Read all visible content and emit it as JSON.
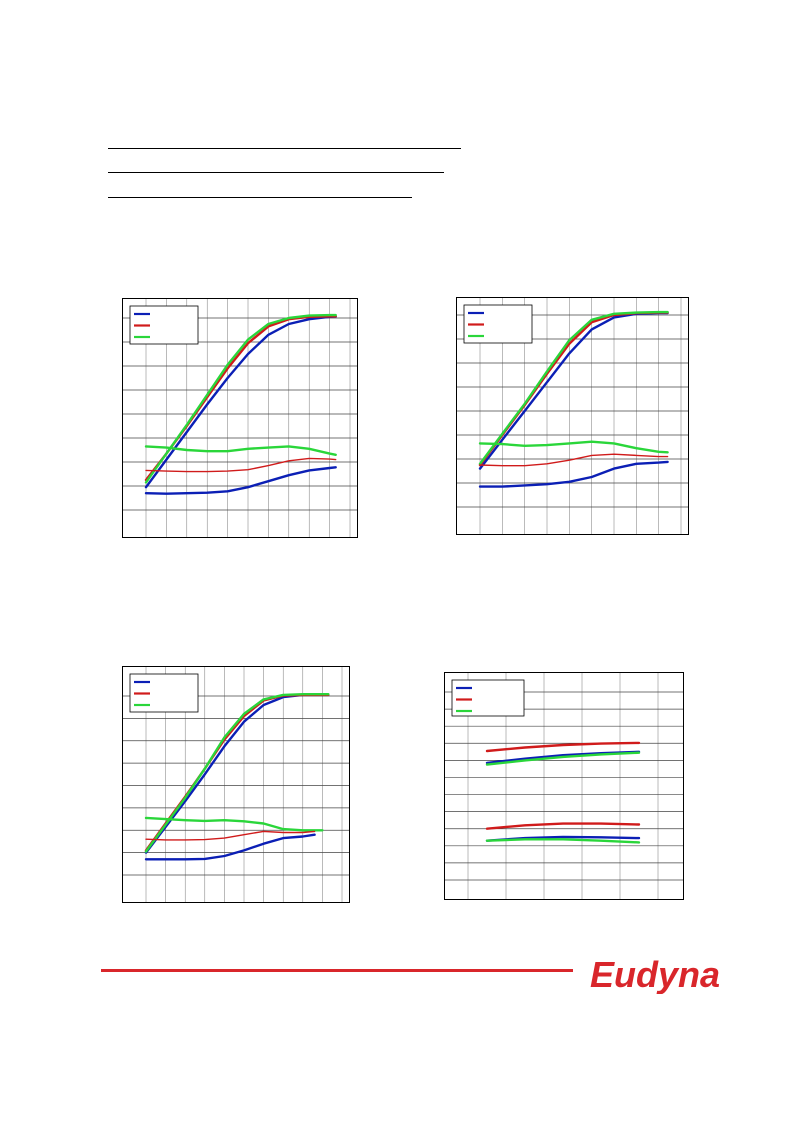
{
  "page": {
    "header_rules": 3
  },
  "footer": {
    "logo_text": "Eudyna",
    "accent_color": "#d9262b"
  },
  "chart_data": [
    {
      "type": "line",
      "title": "",
      "grid": true,
      "legend": "top-left",
      "xlim": [
        0,
        10
      ],
      "ylim": [
        0,
        8
      ],
      "xticks": 10,
      "yticks": 8,
      "series": [
        {
          "color": "#0b1fb5",
          "width": 2.4,
          "x": [
            0,
            1,
            2,
            3,
            4,
            5,
            6,
            7,
            8,
            9,
            9.3
          ],
          "y": [
            0.95,
            2.1,
            3.25,
            4.4,
            5.5,
            6.5,
            7.3,
            7.75,
            7.95,
            8.05,
            8.06
          ]
        },
        {
          "color": "#d01b1b",
          "width": 2.4,
          "x": [
            0,
            1,
            2,
            3,
            4,
            5,
            6,
            7,
            8,
            9,
            9.3
          ],
          "y": [
            1.25,
            2.35,
            3.5,
            4.7,
            5.9,
            6.95,
            7.65,
            7.95,
            8.05,
            8.07,
            8.07
          ]
        },
        {
          "color": "#2ad63a",
          "width": 2.4,
          "x": [
            0,
            1,
            2,
            3,
            4,
            5,
            6,
            7,
            8,
            9,
            9.3
          ],
          "y": [
            1.15,
            2.35,
            3.55,
            4.8,
            6.05,
            7.1,
            7.75,
            8.0,
            8.1,
            8.12,
            8.12
          ]
        },
        {
          "color": "#2ad63a",
          "width": 2.4,
          "x": [
            0,
            1,
            2,
            3,
            4,
            5,
            6,
            7,
            8,
            9,
            9.3
          ],
          "y": [
            2.65,
            2.6,
            2.5,
            2.45,
            2.45,
            2.55,
            2.6,
            2.65,
            2.55,
            2.35,
            2.3
          ]
        },
        {
          "color": "#d01b1b",
          "width": 1.4,
          "x": [
            0,
            1,
            2,
            3,
            4,
            5,
            6,
            7,
            8,
            9,
            9.3
          ],
          "y": [
            1.65,
            1.62,
            1.6,
            1.6,
            1.62,
            1.68,
            1.85,
            2.05,
            2.15,
            2.12,
            2.1
          ]
        },
        {
          "color": "#0b1fb5",
          "width": 2.4,
          "x": [
            0,
            1,
            2,
            3,
            4,
            5,
            6,
            7,
            8,
            9,
            9.3
          ],
          "y": [
            0.7,
            0.68,
            0.7,
            0.72,
            0.78,
            0.95,
            1.2,
            1.45,
            1.65,
            1.75,
            1.78
          ]
        }
      ]
    },
    {
      "type": "line",
      "title": "",
      "grid": true,
      "legend": "top-left",
      "xlim": [
        0,
        9
      ],
      "ylim": [
        0,
        8
      ],
      "xticks": 9,
      "yticks": 8,
      "series": [
        {
          "color": "#0b1fb5",
          "width": 2.4,
          "x": [
            0,
            1,
            2,
            3,
            4,
            5,
            6,
            7,
            8,
            8.4
          ],
          "y": [
            1.6,
            2.8,
            4.0,
            5.2,
            6.4,
            7.4,
            7.9,
            8.05,
            8.08,
            8.08
          ]
        },
        {
          "color": "#d01b1b",
          "width": 2.4,
          "x": [
            0,
            1,
            2,
            3,
            4,
            5,
            6,
            7,
            8,
            8.4
          ],
          "y": [
            1.75,
            3.0,
            4.25,
            5.55,
            6.8,
            7.7,
            8.0,
            8.08,
            8.1,
            8.1
          ]
        },
        {
          "color": "#2ad63a",
          "width": 2.4,
          "x": [
            0,
            1,
            2,
            3,
            4,
            5,
            6,
            7,
            8,
            8.4
          ],
          "y": [
            1.8,
            3.05,
            4.3,
            5.65,
            6.95,
            7.8,
            8.05,
            8.1,
            8.12,
            8.12
          ]
        },
        {
          "color": "#2ad63a",
          "width": 2.4,
          "x": [
            0,
            1,
            2,
            3,
            4,
            5,
            6,
            7,
            8,
            8.4
          ],
          "y": [
            2.65,
            2.62,
            2.55,
            2.58,
            2.65,
            2.72,
            2.65,
            2.45,
            2.3,
            2.28
          ]
        },
        {
          "color": "#d01b1b",
          "width": 1.4,
          "x": [
            0,
            1,
            2,
            3,
            4,
            5,
            6,
            7,
            8,
            8.4
          ],
          "y": [
            1.75,
            1.72,
            1.72,
            1.8,
            1.95,
            2.15,
            2.2,
            2.15,
            2.1,
            2.1
          ]
        },
        {
          "color": "#0b1fb5",
          "width": 2.4,
          "x": [
            0,
            1,
            2,
            3,
            4,
            5,
            6,
            7,
            8,
            8.4
          ],
          "y": [
            0.85,
            0.85,
            0.9,
            0.95,
            1.05,
            1.25,
            1.6,
            1.8,
            1.85,
            1.88
          ]
        }
      ]
    },
    {
      "type": "line",
      "title": "",
      "grid": true,
      "legend": "top-left",
      "xlim": [
        0,
        10
      ],
      "ylim": [
        0,
        8
      ],
      "xticks": 10,
      "yticks": 8,
      "series": [
        {
          "color": "#0b1fb5",
          "width": 2.4,
          "x": [
            0,
            1,
            2,
            3,
            4,
            5,
            6,
            7,
            8,
            9,
            9.3
          ],
          "y": [
            1.0,
            2.15,
            3.3,
            4.5,
            5.75,
            6.85,
            7.6,
            7.95,
            8.05,
            8.05,
            8.05
          ]
        },
        {
          "color": "#d01b1b",
          "width": 2.4,
          "x": [
            0,
            1,
            2,
            3,
            4,
            5,
            6,
            7,
            8,
            9,
            9.3
          ],
          "y": [
            1.1,
            2.3,
            3.5,
            4.75,
            6.05,
            7.1,
            7.8,
            8.02,
            8.05,
            8.05,
            8.05
          ]
        },
        {
          "color": "#2ad63a",
          "width": 2.4,
          "x": [
            0,
            1,
            2,
            3,
            4,
            5,
            6,
            7,
            8,
            9,
            9.3
          ],
          "y": [
            1.05,
            2.25,
            3.45,
            4.75,
            6.15,
            7.2,
            7.85,
            8.05,
            8.08,
            8.08,
            8.08
          ]
        },
        {
          "color": "#2ad63a",
          "width": 2.4,
          "x": [
            0,
            1,
            2,
            3,
            4,
            5,
            6,
            7,
            8,
            9,
            8.6
          ],
          "y": [
            2.55,
            2.5,
            2.45,
            2.42,
            2.45,
            2.4,
            2.3,
            2.05,
            2.0,
            2.0,
            2.0
          ]
        },
        {
          "color": "#d01b1b",
          "width": 1.4,
          "x": [
            0,
            1,
            2,
            3,
            4,
            5,
            6,
            7,
            8,
            8.6
          ],
          "y": [
            1.6,
            1.57,
            1.57,
            1.58,
            1.65,
            1.8,
            1.95,
            1.9,
            1.9,
            1.95
          ]
        },
        {
          "color": "#0b1fb5",
          "width": 2.4,
          "x": [
            0,
            1,
            2,
            3,
            4,
            5,
            6,
            7,
            8,
            8.6
          ],
          "y": [
            0.7,
            0.7,
            0.7,
            0.72,
            0.85,
            1.1,
            1.4,
            1.65,
            1.72,
            1.8
          ]
        }
      ]
    },
    {
      "type": "line",
      "title": "",
      "grid": true,
      "legend": "top-left",
      "xlim": [
        0,
        5
      ],
      "ylim": [
        0,
        11
      ],
      "xticks": 5,
      "yticks": 11,
      "series": [
        {
          "color": "#d01b1b",
          "width": 2.4,
          "x": [
            0.5,
            1.5,
            2.5,
            3.5,
            4.5
          ],
          "y": [
            7.55,
            7.75,
            7.9,
            7.98,
            8.02
          ]
        },
        {
          "color": "#0b1fb5",
          "width": 2.4,
          "x": [
            0.5,
            1.5,
            2.5,
            3.5,
            4.5
          ],
          "y": [
            6.85,
            7.1,
            7.3,
            7.42,
            7.5
          ]
        },
        {
          "color": "#2ad63a",
          "width": 2.4,
          "x": [
            0.5,
            1.5,
            2.5,
            3.5,
            4.5
          ],
          "y": [
            6.75,
            7.0,
            7.2,
            7.35,
            7.45
          ]
        },
        {
          "color": "#d01b1b",
          "width": 2.4,
          "x": [
            0.5,
            1.5,
            2.5,
            3.5,
            4.5
          ],
          "y": [
            3.0,
            3.2,
            3.3,
            3.3,
            3.25
          ]
        },
        {
          "color": "#0b1fb5",
          "width": 2.4,
          "x": [
            0.5,
            1.5,
            2.5,
            3.5,
            4.5
          ],
          "y": [
            2.3,
            2.45,
            2.52,
            2.5,
            2.45
          ]
        },
        {
          "color": "#2ad63a",
          "width": 2.4,
          "x": [
            0.5,
            1.5,
            2.5,
            3.5,
            4.5
          ],
          "y": [
            2.3,
            2.38,
            2.38,
            2.3,
            2.2
          ]
        }
      ]
    }
  ]
}
